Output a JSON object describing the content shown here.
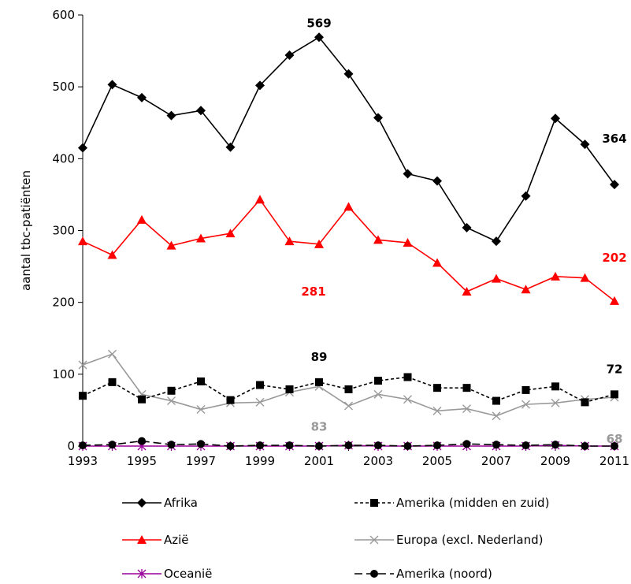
{
  "chart_data": {
    "type": "line",
    "title": "",
    "xlabel": "",
    "ylabel": "aantal tbc-patiënten",
    "ylim": [
      0,
      600
    ],
    "yticks": [
      0,
      100,
      200,
      300,
      400,
      500,
      600
    ],
    "x": [
      1993,
      1994,
      1995,
      1996,
      1997,
      1998,
      1999,
      2000,
      2001,
      2002,
      2003,
      2004,
      2005,
      2006,
      2007,
      2008,
      2009,
      2010,
      2011
    ],
    "xtick_labels": [
      "1993",
      "1995",
      "1997",
      "1999",
      "2001",
      "2003",
      "2005",
      "2007",
      "2009",
      "2011"
    ],
    "grid": false,
    "legend_position": "bottom",
    "series": [
      {
        "name": "Afrika",
        "color": "#000000",
        "marker": "diamond",
        "dash": "solid",
        "values": [
          415,
          503,
          485,
          460,
          467,
          416,
          502,
          544,
          569,
          518,
          457,
          379,
          369,
          304,
          285,
          348,
          456,
          420,
          364
        ]
      },
      {
        "name": "Amerika (midden en zuid)",
        "color": "#000000",
        "marker": "square",
        "dash": "dashed",
        "values": [
          70,
          89,
          65,
          77,
          90,
          64,
          85,
          79,
          89,
          79,
          91,
          96,
          81,
          81,
          63,
          78,
          83,
          61,
          72
        ]
      },
      {
        "name": "Azië",
        "color": "#ff0000",
        "marker": "triangle",
        "dash": "solid",
        "values": [
          285,
          266,
          315,
          279,
          289,
          296,
          343,
          285,
          281,
          333,
          287,
          283,
          255,
          215,
          233,
          218,
          236,
          234,
          202
        ]
      },
      {
        "name": "Europa (excl. Nederland)",
        "color": "#999999",
        "marker": "x",
        "dash": "solid",
        "values": [
          113,
          128,
          72,
          63,
          51,
          60,
          61,
          75,
          83,
          56,
          72,
          65,
          49,
          52,
          42,
          58,
          60,
          65,
          68
        ]
      },
      {
        "name": "Oceanië",
        "color": "#990099",
        "marker": "asterisk",
        "dash": "solid",
        "values": [
          0,
          0,
          0,
          0,
          0,
          0,
          0,
          0,
          0,
          1,
          0,
          0,
          0,
          0,
          0,
          0,
          1,
          0,
          0
        ]
      },
      {
        "name": "Amerika (noord)",
        "color": "#000000",
        "marker": "circle",
        "dash": "longdash",
        "values": [
          1,
          2,
          7,
          2,
          3,
          0,
          1,
          1,
          0,
          1,
          1,
          0,
          1,
          3,
          2,
          1,
          2,
          0,
          0
        ]
      }
    ],
    "annotations": [
      {
        "text": "569",
        "x": 2001,
        "series": "Afrika",
        "color": "#000000"
      },
      {
        "text": "364",
        "x": 2011,
        "series": "Afrika",
        "color": "#000000"
      },
      {
        "text": "281",
        "x": 2001,
        "series": "Azië",
        "color": "#ff0000"
      },
      {
        "text": "202",
        "x": 2011,
        "series": "Azië",
        "color": "#ff0000"
      },
      {
        "text": "89",
        "x": 2001,
        "series": "Amerika (midden en zuid)",
        "color": "#000000"
      },
      {
        "text": "72",
        "x": 2011,
        "series": "Amerika (midden en zuid)",
        "color": "#000000"
      },
      {
        "text": "83",
        "x": 2001,
        "series": "Europa (excl. Nederland)",
        "color": "#999999"
      },
      {
        "text": "68",
        "x": 2011,
        "series": "Europa (excl. Nederland)",
        "color": "#999999"
      }
    ]
  }
}
